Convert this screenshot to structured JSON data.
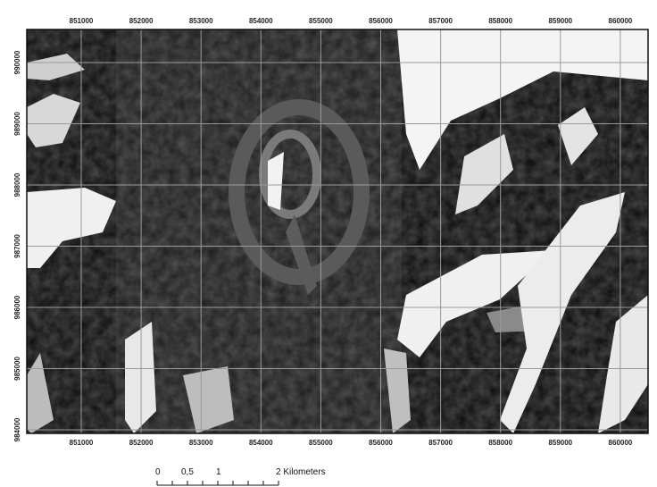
{
  "map": {
    "x_ticks": [
      "851000",
      "852000",
      "853000",
      "854000",
      "855000",
      "856000",
      "857000",
      "858000",
      "859000",
      "860000"
    ],
    "y_ticks": [
      "990000",
      "989000",
      "988000",
      "987000",
      "986000",
      "985000",
      "984000"
    ],
    "grid_color": "#9a9a9a",
    "colors": {
      "background": "#0a0a0a",
      "terrain_dark": "#1c1c1c",
      "terrain_mid": "#3a3a3a",
      "highlight": "#f2f2f2",
      "gray": "#8a8a8a"
    }
  },
  "scale_bar": {
    "labels": [
      "0",
      "0,5",
      "1",
      "2 Kilometers"
    ]
  }
}
